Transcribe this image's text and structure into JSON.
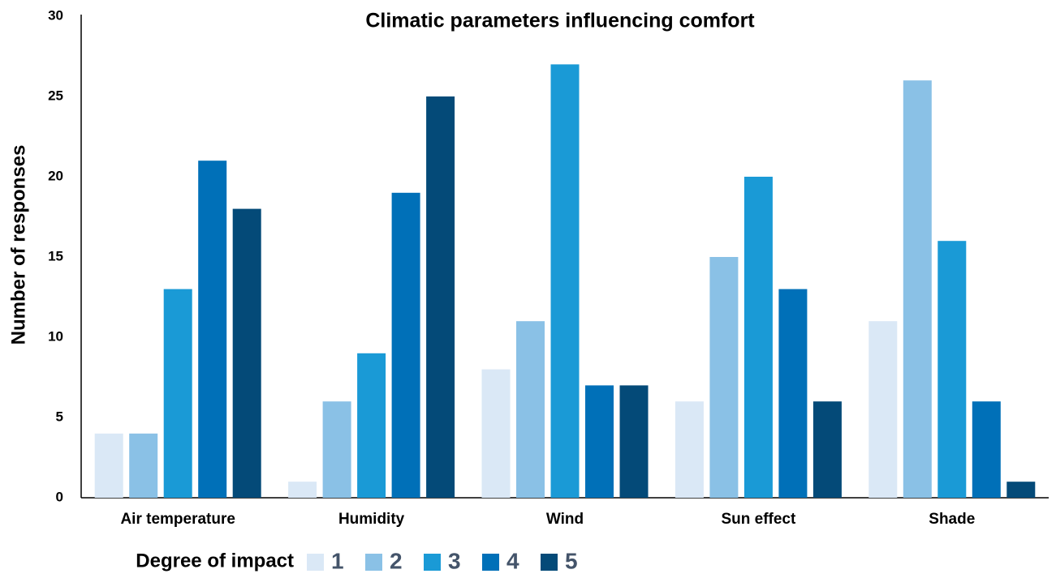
{
  "chart_data": {
    "type": "bar",
    "title": "Climatic parameters influencing comfort",
    "y_label": "Number of responses",
    "legend_title": "Degree of impact",
    "categories": [
      "Air temperature",
      "Humidity",
      "Wind",
      "Sun effect",
      "Shade"
    ],
    "series": [
      {
        "name": "1",
        "color": "#dae8f6",
        "values": [
          4,
          1,
          8,
          6,
          11
        ]
      },
      {
        "name": "2",
        "color": "#8ac1e6",
        "values": [
          4,
          6,
          11,
          15,
          26
        ]
      },
      {
        "name": "3",
        "color": "#1a9ad6",
        "values": [
          13,
          9,
          27,
          20,
          16
        ]
      },
      {
        "name": "4",
        "color": "#0070b8",
        "values": [
          21,
          19,
          7,
          13,
          6
        ]
      },
      {
        "name": "5",
        "color": "#044a78",
        "values": [
          18,
          25,
          7,
          6,
          1
        ]
      }
    ],
    "ylim": [
      0,
      30
    ],
    "yticks": [
      0,
      5,
      10,
      15,
      20,
      25,
      30
    ],
    "grid": false,
    "legend": "bottom"
  }
}
